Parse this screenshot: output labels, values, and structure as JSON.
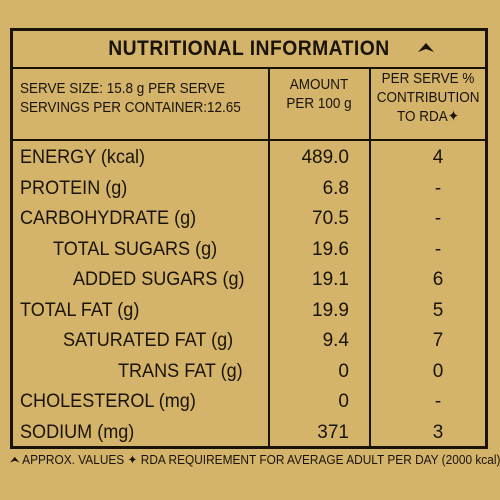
{
  "title": "NUTRITIONAL INFORMATION",
  "serve_size": "SERVE SIZE: 15.8 g PER SERVE",
  "servings": "SERVINGS PER CONTAINER:12.65",
  "amount_head": [
    "AMOUNT",
    "PER 100 g"
  ],
  "rda_head": [
    "PER SERVE %",
    "CONTRIBUTION",
    "TO RDA✦"
  ],
  "rows": [
    {
      "name": "ENERGY (kcal)",
      "amount": "489.0",
      "rda": "4"
    },
    {
      "name": "PROTEIN (g)",
      "amount": "6.8",
      "rda": "-"
    },
    {
      "name": "CARBOHYDRATE (g)",
      "amount": "70.5",
      "rda": "-"
    },
    {
      "name": "TOTAL SUGARS (g)",
      "amount": "19.6",
      "rda": "-"
    },
    {
      "name": "ADDED SUGARS (g)",
      "amount": "19.1",
      "rda": "6"
    },
    {
      "name": "TOTAL FAT (g)",
      "amount": "19.9",
      "rda": "5"
    },
    {
      "name": "SATURATED FAT (g)",
      "amount": "9.4",
      "rda": "7"
    },
    {
      "name": "TRANS FAT (g)",
      "amount": "0",
      "rda": "0"
    },
    {
      "name": "CHOLESTEROL (mg)",
      "amount": "0",
      "rda": "-"
    },
    {
      "name": "SODIUM (mg)",
      "amount": "371",
      "rda": "3"
    }
  ],
  "footnote": "APPROX. VALUES ✦ RDA REQUIREMENT FOR AVERAGE ADULT PER DAY (2000 kcal)"
}
